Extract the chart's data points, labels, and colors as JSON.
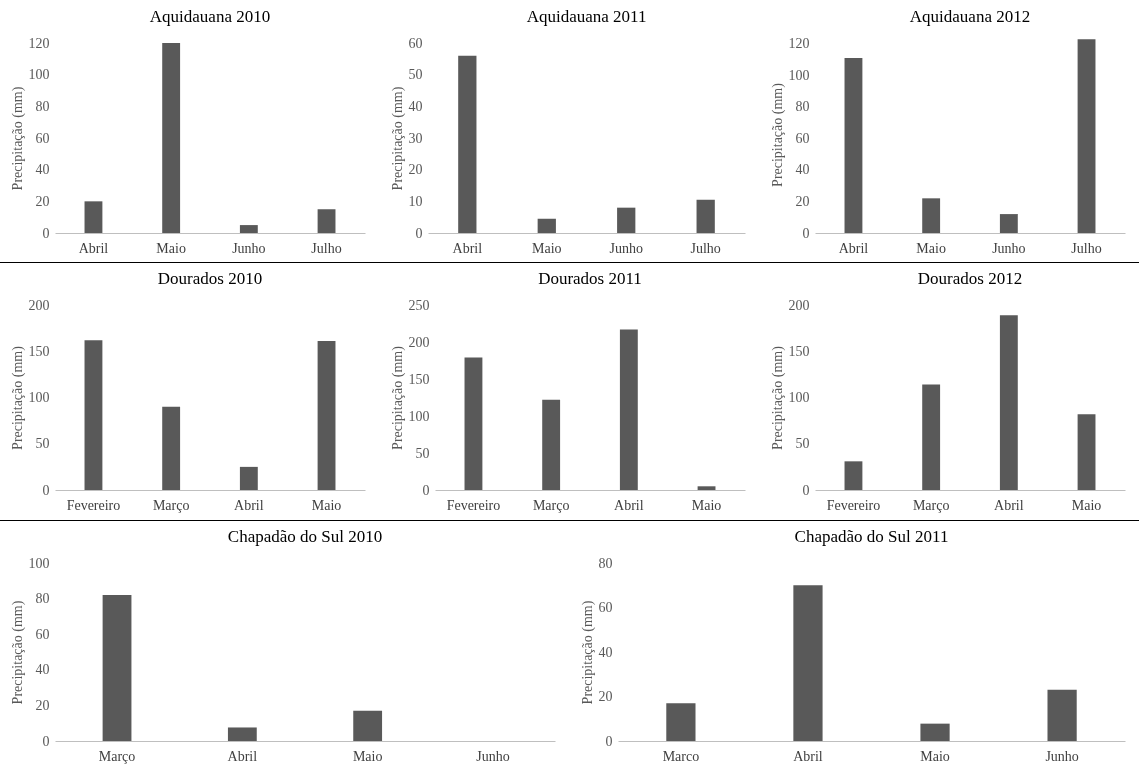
{
  "chart_data": [
    {
      "type": "bar",
      "title": "Aquidauana 2010",
      "ylabel": "Precipitação (mm)",
      "categories": [
        "Abril",
        "Maio",
        "Junho",
        "Julho"
      ],
      "values": [
        20,
        120,
        5,
        15
      ],
      "color": "#595959",
      "ylim": [
        0,
        120
      ],
      "yticks": [
        0,
        20,
        40,
        60,
        80,
        100,
        120
      ]
    },
    {
      "type": "bar",
      "title": "Aquidauana 2011",
      "ylabel": "Precipitação (mm)",
      "categories": [
        "Abril",
        "Maio",
        "Junho",
        "Julho"
      ],
      "values": [
        56,
        4.5,
        8,
        10.5
      ],
      "color": "#595959",
      "ylim": [
        0,
        60
      ],
      "yticks": [
        0,
        10,
        20,
        30,
        40,
        50,
        60
      ]
    },
    {
      "type": "bar",
      "title": "Aquidauana 2012",
      "ylabel": "Precipitação (mm)",
      "categories": [
        "Abril",
        "Maio",
        "Junho",
        "Julho"
      ],
      "values": [
        111,
        22,
        12,
        123
      ],
      "color": "#595959",
      "ylim": [
        0,
        125
      ],
      "yticks": [
        0,
        20,
        40,
        60,
        80,
        100,
        120
      ]
    },
    {
      "type": "bar",
      "title": "Dourados 2010",
      "ylabel": "Precipitação (mm)",
      "categories": [
        "Fevereiro",
        "Março",
        "Abril",
        "Maio"
      ],
      "values": [
        162,
        90,
        25,
        161
      ],
      "color": "#595959",
      "ylim": [
        0,
        200
      ],
      "yticks": [
        0,
        50,
        100,
        150,
        200
      ]
    },
    {
      "type": "bar",
      "title": "Dourados 2011",
      "ylabel": "Precipitação (mm)",
      "categories": [
        "Fevereiro",
        "Março",
        "Abril",
        "Maio"
      ],
      "values": [
        179,
        122,
        217,
        5
      ],
      "color": "#595959",
      "ylim": [
        0,
        250
      ],
      "yticks": [
        0,
        50,
        100,
        150,
        200,
        250
      ]
    },
    {
      "type": "bar",
      "title": "Dourados 2012",
      "ylabel": "Precipitação (mm)",
      "categories": [
        "Fevereiro",
        "Março",
        "Abril",
        "Maio"
      ],
      "values": [
        31,
        114,
        189,
        82
      ],
      "color": "#595959",
      "ylim": [
        0,
        200
      ],
      "yticks": [
        0,
        50,
        100,
        150,
        200
      ]
    },
    {
      "type": "bar",
      "title": "Chapadão do Sul 2010",
      "ylabel": "Precipitação (mm)",
      "categories": [
        "Março",
        "Abril",
        "Maio",
        "Junho"
      ],
      "values": [
        82,
        7.6,
        17,
        0
      ],
      "color": "#595959",
      "ylim": [
        0,
        100
      ],
      "yticks": [
        0,
        20,
        40,
        60,
        80,
        100
      ]
    },
    {
      "type": "bar",
      "title": "Chapadão do Sul 2011",
      "ylabel": "Precipitação (mm)",
      "categories": [
        "Marco",
        "Abril",
        "Maio",
        "Junho"
      ],
      "values": [
        17,
        70,
        7.8,
        23
      ],
      "color": "#595959",
      "ylim": [
        0,
        80
      ],
      "yticks": [
        0,
        20,
        40,
        60,
        80
      ]
    }
  ]
}
